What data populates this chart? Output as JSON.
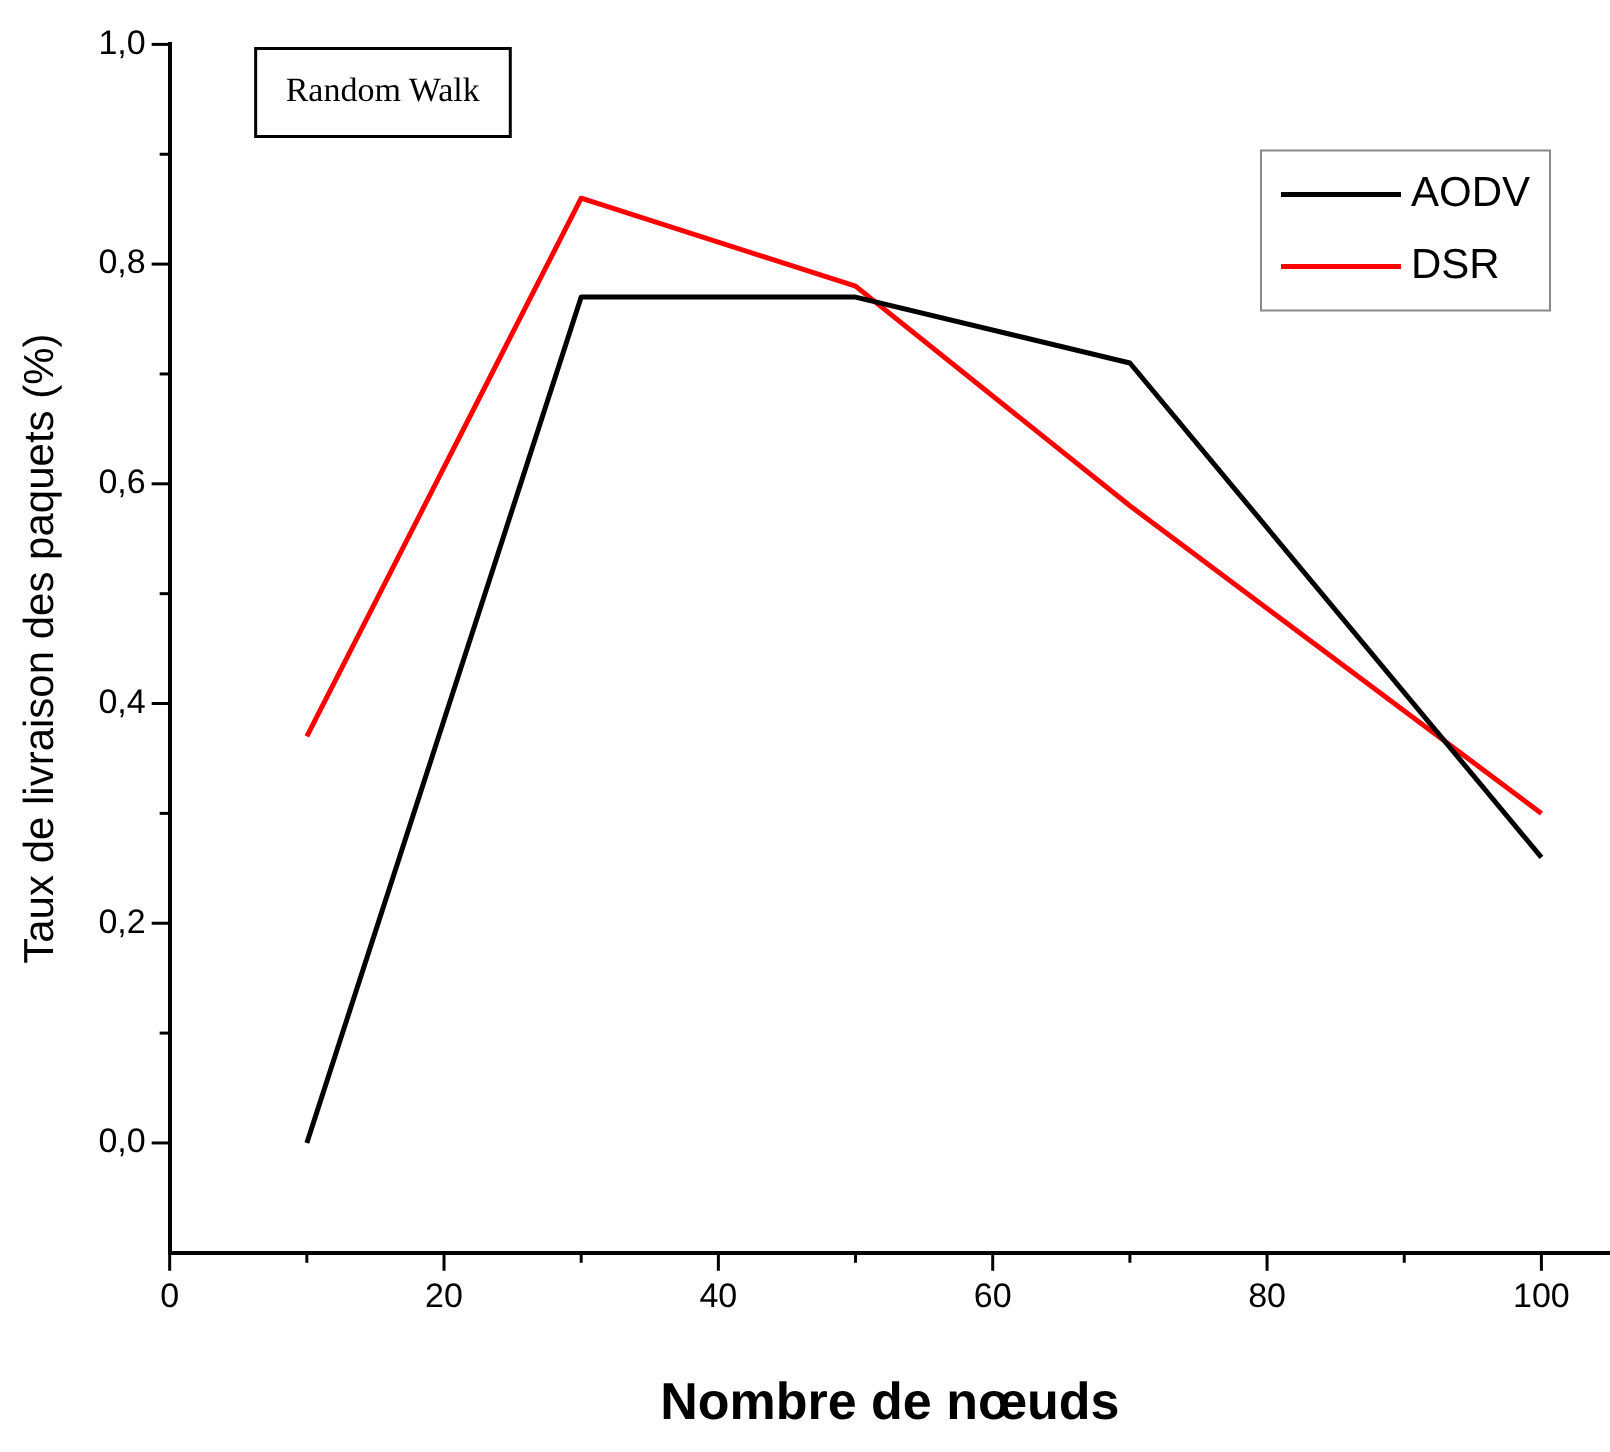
{
  "chart_data": {
    "type": "line",
    "title": "Random Walk",
    "xlabel": "Nombre de nœuds",
    "ylabel": "Taux de livraison des paquets (%)",
    "x": [
      10,
      30,
      50,
      70,
      100
    ],
    "series": [
      {
        "name": "AODV",
        "color": "#000000",
        "values": [
          0.0,
          0.77,
          0.77,
          0.71,
          0.26
        ]
      },
      {
        "name": "DSR",
        "color": "#ff0000",
        "values": [
          0.37,
          0.86,
          0.78,
          0.58,
          0.3
        ]
      }
    ],
    "xlim": [
      0,
      105
    ],
    "xticks": [
      0,
      {
        "value": 10,
        "label": null
      },
      20,
      {
        "value": 30,
        "label": null
      },
      40,
      {
        "value": 50,
        "label": null
      },
      60,
      {
        "value": 70,
        "label": null
      },
      80,
      {
        "value": 90,
        "label": null
      },
      100
    ],
    "ylim": [
      -0.1,
      1.0
    ],
    "yticks": [
      {
        "value": 0,
        "label": "0,0"
      },
      {
        "value": 0.1,
        "label": null
      },
      {
        "value": 0.2,
        "label": "0,2"
      },
      {
        "value": 0.3,
        "label": null
      },
      {
        "value": 0.4,
        "label": "0,4"
      },
      {
        "value": 0.5,
        "label": null
      },
      {
        "value": 0.6,
        "label": "0,6"
      },
      {
        "value": 0.7,
        "label": null
      },
      {
        "value": 0.8,
        "label": "0,8"
      },
      {
        "value": 0.9,
        "label": null
      },
      {
        "value": 1.0,
        "label": "1,0"
      }
    ],
    "grid": false,
    "legend": "top right",
    "marker": "none",
    "line_style": "solid"
  }
}
